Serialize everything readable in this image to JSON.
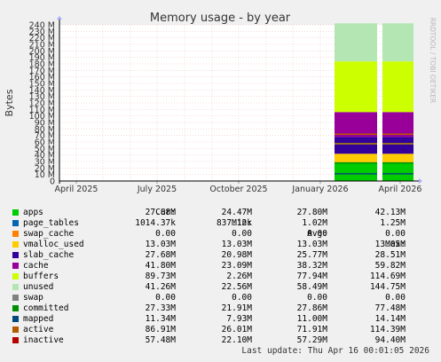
{
  "chart_data": {
    "type": "area",
    "title": "Memory usage - by year",
    "ylabel": "Bytes",
    "side_label": "RRDTOOL / TOBI OETIKER",
    "ylim": [
      0,
      240
    ],
    "yticks": [
      "0",
      "10 M",
      "20 M",
      "30 M",
      "40 M",
      "50 M",
      "60 M",
      "70 M",
      "80 M",
      "90 M",
      "100 M",
      "110 M",
      "120 M",
      "130 M",
      "140 M",
      "150 M",
      "160 M",
      "170 M",
      "180 M",
      "190 M",
      "200 M",
      "210 M",
      "220 M",
      "230 M",
      "240 M"
    ],
    "xlim": [
      "2025-03-13",
      "2026-04-16"
    ],
    "xticks": [
      {
        "date": "2025-04-01",
        "label": "April 2025"
      },
      {
        "date": "2025-07-01",
        "label": "July 2025"
      },
      {
        "date": "2025-10-01",
        "label": "October 2025"
      },
      {
        "date": "2026-01-01",
        "label": "January 2026"
      },
      {
        "date": "2026-04-01",
        "label": "April 2026"
      }
    ],
    "data_periods": [
      {
        "start": "2026-01-17",
        "end": "2026-03-06"
      },
      {
        "start": "2026-03-12",
        "end": "2026-04-16"
      }
    ],
    "stack_order": [
      "apps",
      "page_tables",
      "swap_cache",
      "vmalloc_used",
      "slab_cache",
      "cache",
      "buffers",
      "unused",
      "swap"
    ],
    "line_series": [
      "committed",
      "mapped",
      "active",
      "inactive"
    ],
    "columns": [
      "Cur:",
      "Min:",
      "Avg:",
      "Max:"
    ],
    "series": [
      {
        "name": "apps",
        "color": "#00cc00",
        "values": {
          "cur": "27.88M",
          "min": "24.47M",
          "avg": "27.80M",
          "max": "42.13M"
        }
      },
      {
        "name": "page_tables",
        "color": "#0066b3",
        "values": {
          "cur": "1014.37k",
          "min": "837.12k",
          "avg": "1.02M",
          "max": "1.25M"
        }
      },
      {
        "name": "swap_cache",
        "color": "#ff8000",
        "values": {
          "cur": "0.00",
          "min": "0.00",
          "avg": "0.00",
          "max": "0.00"
        }
      },
      {
        "name": "vmalloc_used",
        "color": "#ffcc00",
        "values": {
          "cur": "13.03M",
          "min": "13.03M",
          "avg": "13.03M",
          "max": "13.05M"
        }
      },
      {
        "name": "slab_cache",
        "color": "#330099",
        "values": {
          "cur": "27.68M",
          "min": "20.98M",
          "avg": "25.77M",
          "max": "28.51M"
        }
      },
      {
        "name": "cache",
        "color": "#990099",
        "values": {
          "cur": "41.80M",
          "min": "23.09M",
          "avg": "38.32M",
          "max": "59.82M"
        }
      },
      {
        "name": "buffers",
        "color": "#ccff00",
        "values": {
          "cur": "89.73M",
          "min": "2.26M",
          "avg": "77.94M",
          "max": "114.69M"
        }
      },
      {
        "name": "unused",
        "color": "#b3e6b3",
        "values": {
          "cur": "41.26M",
          "min": "22.56M",
          "avg": "58.49M",
          "max": "144.75M"
        }
      },
      {
        "name": "swap",
        "color": "#808080",
        "values": {
          "cur": "0.00",
          "min": "0.00",
          "avg": "0.00",
          "max": "0.00"
        }
      },
      {
        "name": "committed",
        "color": "#008f00",
        "values": {
          "cur": "27.33M",
          "min": "21.91M",
          "avg": "27.86M",
          "max": "77.48M"
        }
      },
      {
        "name": "mapped",
        "color": "#00487d",
        "values": {
          "cur": "11.34M",
          "min": "7.93M",
          "avg": "11.00M",
          "max": "14.14M"
        }
      },
      {
        "name": "active",
        "color": "#b35a00",
        "values": {
          "cur": "86.91M",
          "min": "26.01M",
          "avg": "71.91M",
          "max": "114.39M"
        }
      },
      {
        "name": "inactive",
        "color": "#b38f00",
        "swatch": "#b30000",
        "values": {
          "cur": "57.48M",
          "min": "22.10M",
          "avg": "57.29M",
          "max": "94.40M"
        }
      }
    ],
    "grid": true,
    "legend_position": "bottom"
  },
  "footer": "Last update: Thu Apr 16 00:01:05 2026"
}
